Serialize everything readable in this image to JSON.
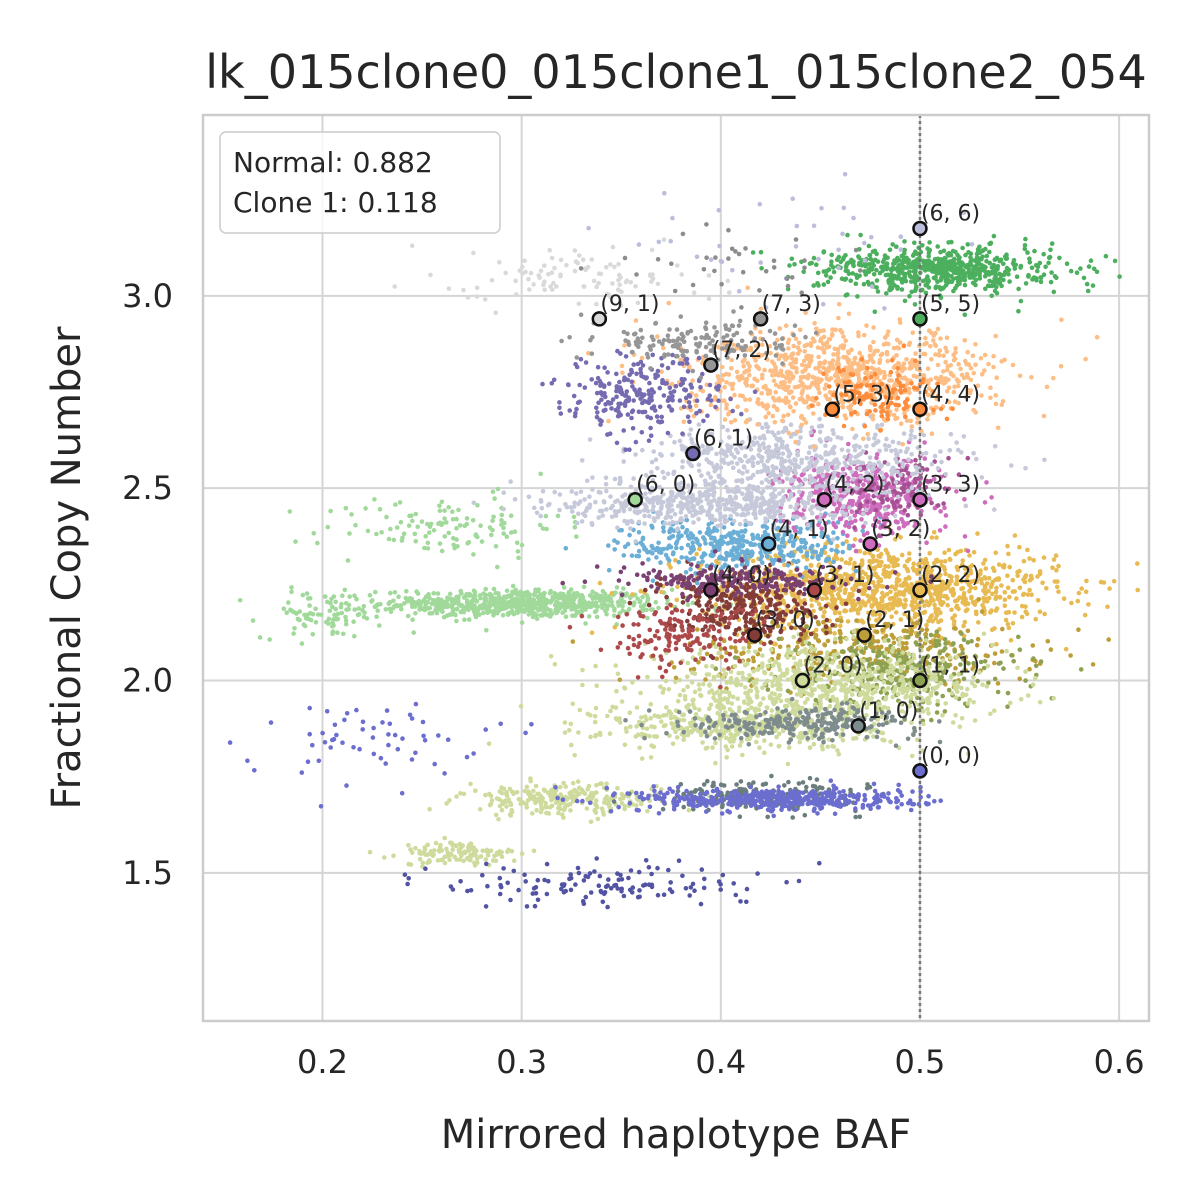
{
  "chart_data": {
    "type": "scatter",
    "title": "lk_015clone0_015clone1_015clone2_054",
    "xlabel": "Mirrored haplotype BAF",
    "ylabel": "Fractional Copy Number",
    "xlim": [
      0.14,
      0.615
    ],
    "ylim": [
      1.115,
      3.47
    ],
    "xticks": [
      0.2,
      0.3,
      0.4,
      0.5,
      0.6
    ],
    "xtick_labels": [
      "0.2",
      "0.3",
      "0.4",
      "0.5",
      "0.6"
    ],
    "yticks": [
      1.5,
      2.0,
      2.5,
      3.0
    ],
    "ytick_labels": [
      "1.5",
      "2.0",
      "2.5",
      "3.0"
    ],
    "grid": true,
    "reference_line_x": 0.5,
    "legend": {
      "placement": "top-left",
      "entries": [
        "Normal: 0.882",
        "Clone 1: 0.118"
      ]
    },
    "clusters": [
      {
        "cx": 0.3,
        "cy": 2.2,
        "sx": 0.035,
        "sy": 0.018,
        "n": 700,
        "color": "#a1d99b"
      },
      {
        "cx": 0.2,
        "cy": 2.17,
        "sx": 0.015,
        "sy": 0.03,
        "n": 80,
        "color": "#a1d99b"
      },
      {
        "cx": 0.26,
        "cy": 2.4,
        "sx": 0.03,
        "sy": 0.04,
        "n": 120,
        "color": "#a1d99b"
      },
      {
        "cx": 0.48,
        "cy": 2.24,
        "sx": 0.045,
        "sy": 0.055,
        "n": 1100,
        "color": "#e7ba52"
      },
      {
        "cx": 0.47,
        "cy": 2.08,
        "sx": 0.045,
        "sy": 0.045,
        "n": 350,
        "color": "#bd9e39"
      },
      {
        "cx": 0.49,
        "cy": 2.02,
        "sx": 0.03,
        "sy": 0.05,
        "n": 300,
        "color": "#8ca252"
      },
      {
        "cx": 0.45,
        "cy": 1.98,
        "sx": 0.045,
        "sy": 0.05,
        "n": 700,
        "color": "#cedb9c"
      },
      {
        "cx": 0.41,
        "cy": 1.88,
        "sx": 0.035,
        "sy": 0.03,
        "n": 400,
        "color": "#cedb9c"
      },
      {
        "cx": 0.32,
        "cy": 1.69,
        "sx": 0.025,
        "sy": 0.02,
        "n": 250,
        "color": "#cedb9c"
      },
      {
        "cx": 0.27,
        "cy": 1.55,
        "sx": 0.015,
        "sy": 0.015,
        "n": 120,
        "color": "#cedb9c"
      },
      {
        "cx": 0.44,
        "cy": 1.89,
        "sx": 0.03,
        "sy": 0.02,
        "n": 250,
        "color": "#7f8c8d"
      },
      {
        "cx": 0.42,
        "cy": 1.7,
        "sx": 0.025,
        "sy": 0.02,
        "n": 200,
        "color": "#6b7d7d"
      },
      {
        "cx": 0.43,
        "cy": 1.69,
        "sx": 0.035,
        "sy": 0.015,
        "n": 450,
        "color": "#6b6ecf"
      },
      {
        "cx": 0.34,
        "cy": 1.47,
        "sx": 0.04,
        "sy": 0.03,
        "n": 130,
        "color": "#5254a3"
      },
      {
        "cx": 0.22,
        "cy": 1.85,
        "sx": 0.03,
        "sy": 0.05,
        "n": 60,
        "color": "#6b6ecf"
      },
      {
        "cx": 0.41,
        "cy": 2.2,
        "sx": 0.02,
        "sy": 0.045,
        "n": 300,
        "color": "#843c39"
      },
      {
        "cx": 0.38,
        "cy": 2.12,
        "sx": 0.02,
        "sy": 0.04,
        "n": 150,
        "color": "#ad494a"
      },
      {
        "cx": 0.41,
        "cy": 2.35,
        "sx": 0.03,
        "sy": 0.035,
        "n": 400,
        "color": "#6baed6"
      },
      {
        "cx": 0.41,
        "cy": 2.26,
        "sx": 0.03,
        "sy": 0.02,
        "n": 200,
        "color": "#7b4173"
      },
      {
        "cx": 0.47,
        "cy": 2.48,
        "sx": 0.02,
        "sy": 0.05,
        "n": 450,
        "color": "#ce6dbd"
      },
      {
        "cx": 0.49,
        "cy": 2.5,
        "sx": 0.012,
        "sy": 0.04,
        "n": 120,
        "color": "#a55194"
      },
      {
        "cx": 0.39,
        "cy": 2.46,
        "sx": 0.035,
        "sy": 0.03,
        "n": 500,
        "color": "#c6c9d9"
      },
      {
        "cx": 0.44,
        "cy": 2.57,
        "sx": 0.04,
        "sy": 0.05,
        "n": 550,
        "color": "#c6c9d9"
      },
      {
        "cx": 0.46,
        "cy": 2.79,
        "sx": 0.04,
        "sy": 0.06,
        "n": 900,
        "color": "#fdbe85"
      },
      {
        "cx": 0.48,
        "cy": 2.74,
        "sx": 0.015,
        "sy": 0.04,
        "n": 120,
        "color": "#fd8d3c"
      },
      {
        "cx": 0.36,
        "cy": 2.74,
        "sx": 0.02,
        "sy": 0.05,
        "n": 250,
        "color": "#756bb1"
      },
      {
        "cx": 0.39,
        "cy": 2.88,
        "sx": 0.025,
        "sy": 0.03,
        "n": 150,
        "color": "#969696"
      },
      {
        "cx": 0.33,
        "cy": 3.05,
        "sx": 0.03,
        "sy": 0.04,
        "n": 100,
        "color": "#d9d9d9"
      },
      {
        "cx": 0.51,
        "cy": 3.07,
        "sx": 0.03,
        "sy": 0.03,
        "n": 650,
        "color": "#4caf5e"
      },
      {
        "cx": 0.44,
        "cy": 3.15,
        "sx": 0.04,
        "sy": 0.08,
        "n": 40,
        "color": "#bcbddc"
      },
      {
        "cx": 0.4,
        "cy": 3.08,
        "sx": 0.03,
        "sy": 0.05,
        "n": 35,
        "color": "#8c8c8c"
      }
    ],
    "states": [
      {
        "label": "(6, 6)",
        "x": 0.5,
        "y": 3.175,
        "color": "#bcbddc"
      },
      {
        "label": "(9, 1)",
        "x": 0.339,
        "y": 2.94,
        "color": "#d9d9d9"
      },
      {
        "label": "(7, 3)",
        "x": 0.42,
        "y": 2.94,
        "color": "#969696"
      },
      {
        "label": "(5, 5)",
        "x": 0.5,
        "y": 2.94,
        "color": "#4caf5e"
      },
      {
        "label": "(7, 2)",
        "x": 0.395,
        "y": 2.82,
        "color": "#969696"
      },
      {
        "label": "(5, 3)",
        "x": 0.456,
        "y": 2.705,
        "color": "#fd8d3c"
      },
      {
        "label": "(4, 4)",
        "x": 0.5,
        "y": 2.705,
        "color": "#fd8d3c"
      },
      {
        "label": "(6, 1)",
        "x": 0.386,
        "y": 2.59,
        "color": "#756bb1"
      },
      {
        "label": "(6, 0)",
        "x": 0.357,
        "y": 2.47,
        "color": "#a1d99b"
      },
      {
        "label": "(4, 2)",
        "x": 0.452,
        "y": 2.47,
        "color": "#ce6dbd"
      },
      {
        "label": "(3, 3)",
        "x": 0.5,
        "y": 2.47,
        "color": "#ce6dbd"
      },
      {
        "label": "(4, 1)",
        "x": 0.424,
        "y": 2.355,
        "color": "#6baed6"
      },
      {
        "label": "(3, 2)",
        "x": 0.475,
        "y": 2.355,
        "color": "#ce6dbd"
      },
      {
        "label": "(4, 0)",
        "x": 0.395,
        "y": 2.235,
        "color": "#7b4173"
      },
      {
        "label": "(3, 1)",
        "x": 0.447,
        "y": 2.235,
        "color": "#ad494a"
      },
      {
        "label": "(2, 2)",
        "x": 0.5,
        "y": 2.235,
        "color": "#e7ba52"
      },
      {
        "label": "(3, 0)",
        "x": 0.417,
        "y": 2.118,
        "color": "#843c39"
      },
      {
        "label": "(2, 1)",
        "x": 0.472,
        "y": 2.118,
        "color": "#bd9e39"
      },
      {
        "label": "(2, 0)",
        "x": 0.441,
        "y": 2.0,
        "color": "#cedb9c"
      },
      {
        "label": "(1, 1)",
        "x": 0.5,
        "y": 2.0,
        "color": "#8ca252"
      },
      {
        "label": "(1, 0)",
        "x": 0.469,
        "y": 1.882,
        "color": "#7f8c8d"
      },
      {
        "label": "(0, 0)",
        "x": 0.5,
        "y": 1.765,
        "color": "#6b6ecf"
      }
    ]
  }
}
